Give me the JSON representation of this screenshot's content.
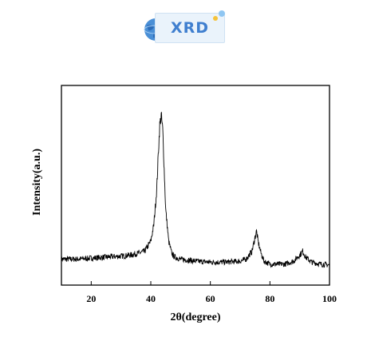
{
  "logo": {
    "text": "XRD",
    "icon": "globe-icon",
    "accent_color": "#3f7fcf",
    "dot_colors": [
      "#f5c33b",
      "#8fc6f2"
    ]
  },
  "chart_data": {
    "type": "line",
    "title": "",
    "xlabel": "2θ(degree)",
    "ylabel": "Intensity(a.u.)",
    "xlim": [
      10,
      100
    ],
    "ylim": [
      0,
      100
    ],
    "xticks": [
      20,
      40,
      60,
      80,
      100
    ],
    "yticks": [],
    "grid": false,
    "legend": "none",
    "line_color": "#000000",
    "series": [
      {
        "x": [
          10,
          15,
          20,
          25,
          30,
          33,
          36,
          38,
          40,
          41,
          42,
          42.5,
          43,
          43.5,
          44,
          44.5,
          45,
          46,
          47,
          48,
          50,
          55,
          60,
          65,
          70,
          72,
          74,
          75,
          75.5,
          76,
          77,
          78,
          80,
          85,
          88,
          90,
          91,
          92,
          94,
          97,
          100
        ],
        "y": [
          13,
          13,
          13.5,
          14,
          14.5,
          15,
          16,
          17,
          22,
          30,
          48,
          65,
          80,
          85,
          78,
          58,
          38,
          22,
          16,
          14,
          13,
          12,
          11.5,
          11.5,
          12,
          13,
          17,
          24,
          27,
          22,
          16,
          12,
          10.5,
          10.5,
          12,
          15,
          17,
          14,
          11.5,
          10.5,
          10
        ]
      }
    ]
  }
}
